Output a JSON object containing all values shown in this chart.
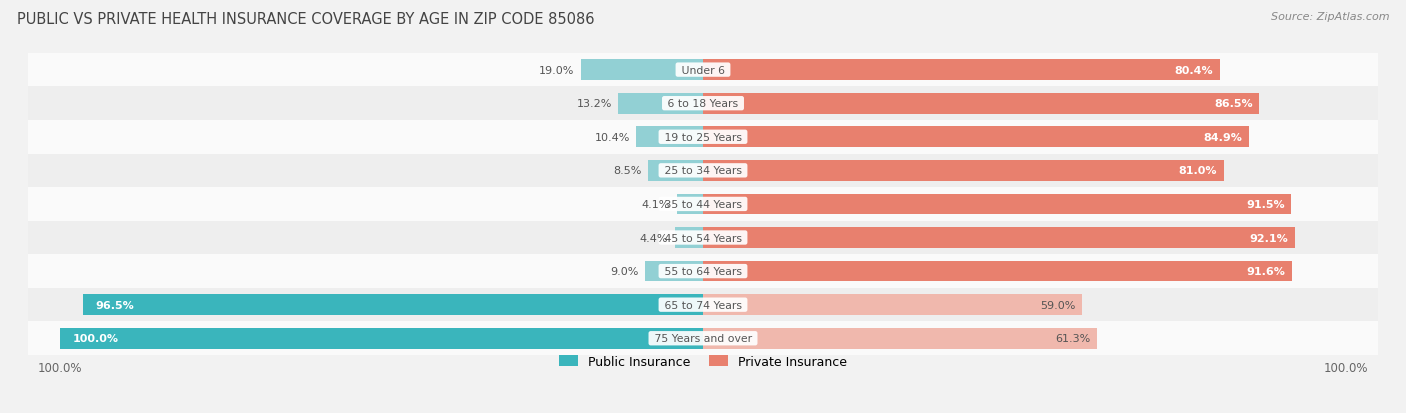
{
  "title": "PUBLIC VS PRIVATE HEALTH INSURANCE COVERAGE BY AGE IN ZIP CODE 85086",
  "source": "Source: ZipAtlas.com",
  "categories": [
    "Under 6",
    "6 to 18 Years",
    "19 to 25 Years",
    "25 to 34 Years",
    "35 to 44 Years",
    "45 to 54 Years",
    "55 to 64 Years",
    "65 to 74 Years",
    "75 Years and over"
  ],
  "public_values": [
    19.0,
    13.2,
    10.4,
    8.5,
    4.1,
    4.4,
    9.0,
    96.5,
    100.0
  ],
  "private_values": [
    80.4,
    86.5,
    84.9,
    81.0,
    91.5,
    92.1,
    91.6,
    59.0,
    61.3
  ],
  "public_color_strong": "#3ab5bc",
  "public_color_light": "#92d0d4",
  "private_color_strong": "#e8806e",
  "private_color_light": "#f0b8ad",
  "bg_color": "#f2f2f2",
  "row_colors": [
    "#fafafa",
    "#eeeeee"
  ],
  "title_color": "#444444",
  "source_color": "#888888",
  "label_dark": "#555555",
  "label_white": "#ffffff",
  "legend_public": "Public Insurance",
  "legend_private": "Private Insurance",
  "bar_height": 0.62,
  "max_val": 100.0,
  "xlim_left": -105,
  "xlim_right": 105
}
